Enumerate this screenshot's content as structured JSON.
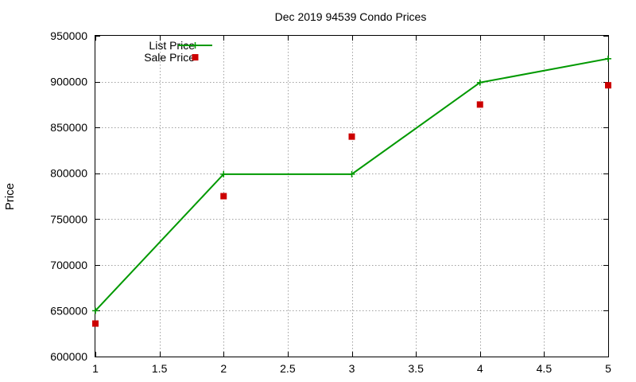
{
  "chart_data": {
    "type": "line",
    "title": "Dec 2019 94539 Condo Prices",
    "xlabel": "",
    "ylabel": "Price",
    "xlim": [
      1,
      5
    ],
    "ylim": [
      600000,
      950000
    ],
    "xticks": [
      1,
      1.5,
      2,
      2.5,
      3,
      3.5,
      4,
      4.5,
      5
    ],
    "xtick_labels": [
      "1",
      "1.5",
      "2",
      "2.5",
      "3",
      "3.5",
      "4",
      "4.5",
      "5"
    ],
    "yticks": [
      600000,
      650000,
      700000,
      750000,
      800000,
      850000,
      900000,
      950000
    ],
    "ytick_labels": [
      "600000",
      "650000",
      "700000",
      "750000",
      "800000",
      "850000",
      "900000",
      "950000"
    ],
    "grid": true,
    "legend_position": "top-left",
    "series": [
      {
        "name": "List Price",
        "style": "linespoints",
        "marker": "plus",
        "color": "#009900",
        "x": [
          1,
          2,
          3,
          4,
          5
        ],
        "y": [
          650000,
          799000,
          799000,
          899000,
          925000
        ]
      },
      {
        "name": "Sale Price",
        "style": "points",
        "marker": "square",
        "color": "#cc0000",
        "x": [
          1,
          2,
          3,
          4,
          5
        ],
        "y": [
          636000,
          775000,
          840000,
          875000,
          896000
        ]
      }
    ]
  }
}
